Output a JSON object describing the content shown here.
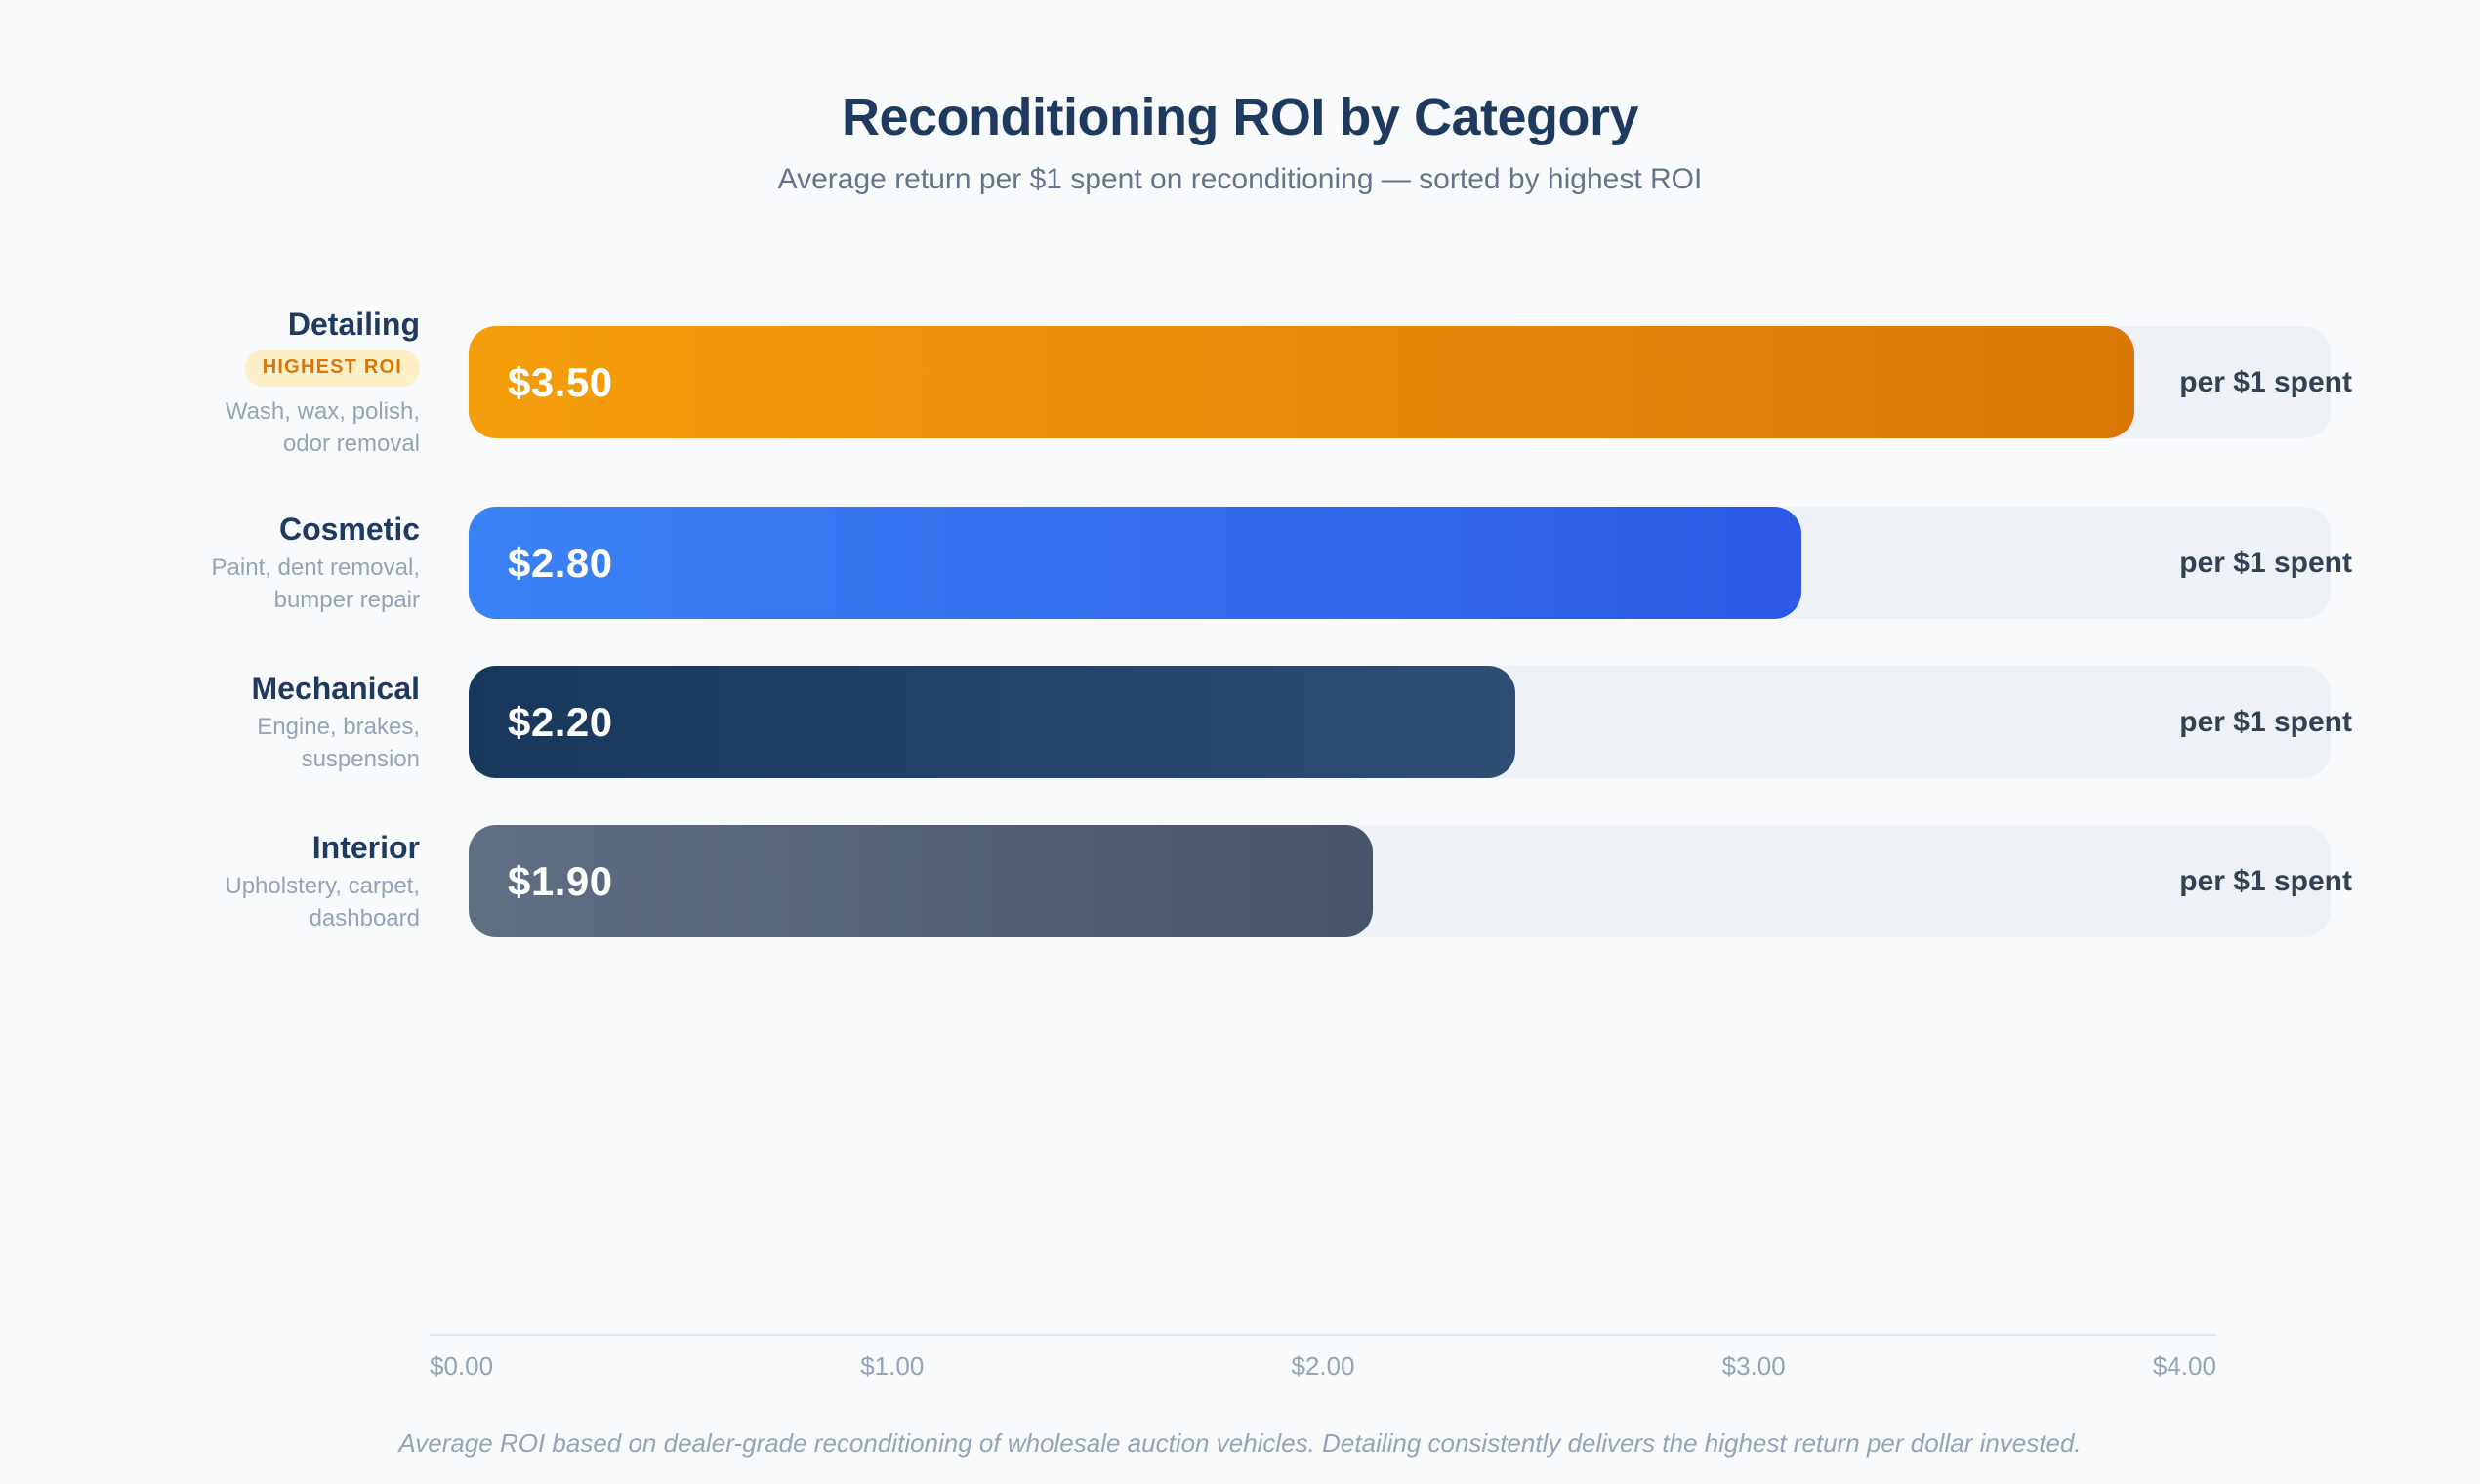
{
  "header": {
    "title": "Reconditioning ROI by Category",
    "subtitle": "Average return per $1 spent on reconditioning — sorted by highest ROI"
  },
  "chart_data": {
    "type": "bar",
    "orientation": "horizontal",
    "title": "Reconditioning ROI by Category",
    "subtitle": "Average return per $1 spent on reconditioning — sorted by highest ROI",
    "categories": [
      "Detailing",
      "Cosmetic",
      "Mechanical",
      "Interior"
    ],
    "values": [
      3.5,
      2.8,
      2.2,
      1.9
    ],
    "value_labels": [
      "$3.50",
      "$2.80",
      "$2.20",
      "$1.90"
    ],
    "unit_label": "per $1 spent",
    "bar_scale_max": 3.913,
    "axis": {
      "min": 0,
      "max": 4,
      "ticks": [
        "$0.00",
        "$1.00",
        "$2.00",
        "$3.00",
        "$4.00"
      ],
      "grid": false
    },
    "legend": null,
    "rows": [
      {
        "label": "Detailing",
        "badge": "HIGHEST ROI",
        "description": "Wash, wax, polish,\nodor removal",
        "value": 3.5,
        "value_label": "$3.50",
        "unit": "per $1 spent",
        "gradient": [
          "#F59E0B",
          "#D97706"
        ]
      },
      {
        "label": "Cosmetic",
        "description": "Paint, dent removal,\nbumper repair",
        "value": 2.8,
        "value_label": "$2.80",
        "unit": "per $1 spent",
        "gradient": [
          "#3B82F6",
          "#2C59E6"
        ]
      },
      {
        "label": "Mechanical",
        "description": "Engine, brakes,\nsuspension",
        "value": 2.2,
        "value_label": "$2.20",
        "unit": "per $1 spent",
        "gradient": [
          "#17375C",
          "#2E4E73"
        ]
      },
      {
        "label": "Interior",
        "description": "Upholstery, carpet,\ndashboard",
        "value": 1.9,
        "value_label": "$1.90",
        "unit": "per $1 spent",
        "gradient": [
          "#606E83",
          "#485468"
        ]
      }
    ],
    "footnote": "Average ROI based on dealer-grade reconditioning of wholesale auction vehicles. Detailing consistently delivers the highest return per dollar invested."
  },
  "colors": {
    "background": "#F8FAFC",
    "title": "#1E3A5F",
    "subtitle": "#64748B",
    "track": "#EEF2F7",
    "badge_bg": "#FDEFC8",
    "badge_text": "#D97706",
    "unit_text": "#334155",
    "axis_line": "#E2E8F0",
    "tick_text": "#94A3B8"
  }
}
